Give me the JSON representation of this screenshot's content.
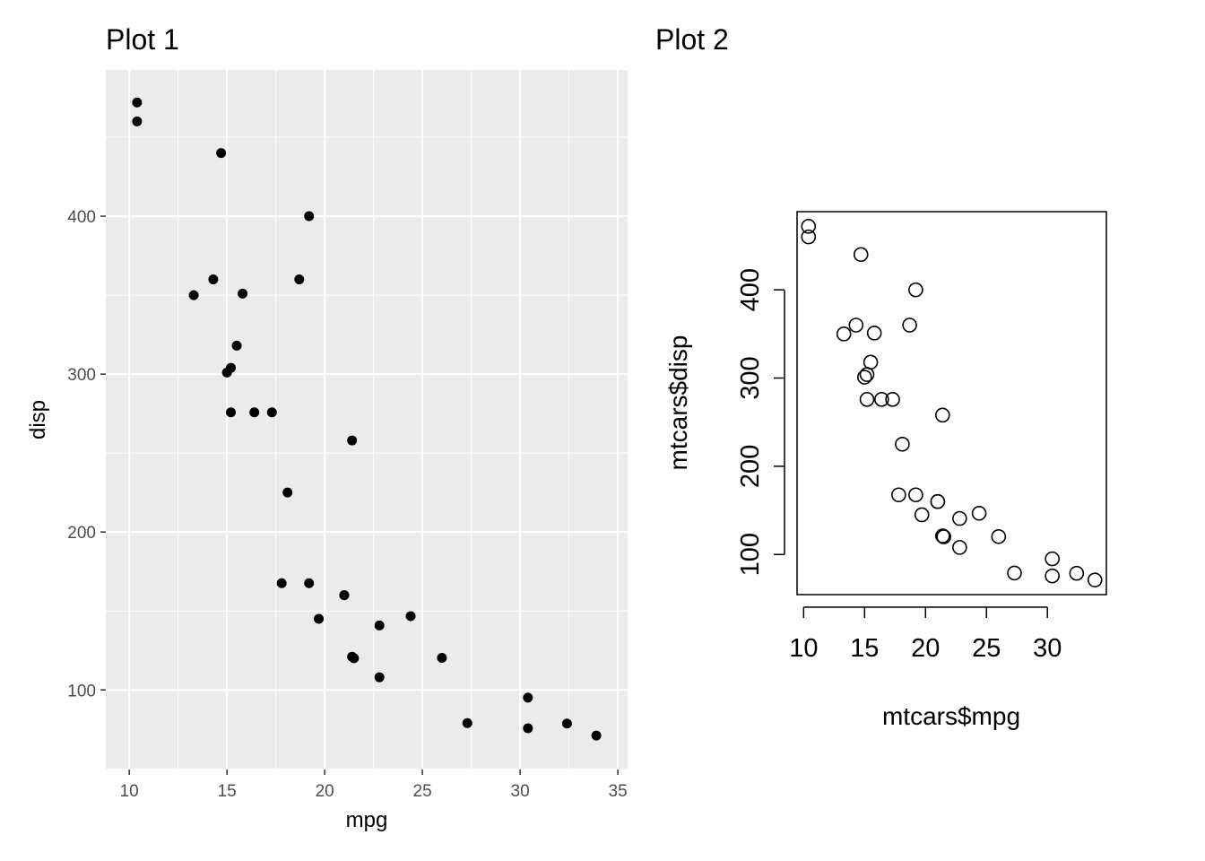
{
  "chart_data": [
    {
      "type": "scatter",
      "title": "Plot 1",
      "xlabel": "mpg",
      "ylabel": "disp",
      "xlim": [
        8.8,
        35.5
      ],
      "ylim": [
        49.6,
        492.6
      ],
      "x_ticks": [
        10,
        15,
        20,
        25,
        30,
        35
      ],
      "y_ticks": [
        100,
        200,
        300,
        400
      ],
      "x_tick_labels": [
        "10",
        "15",
        "20",
        "25",
        "30",
        "35"
      ],
      "y_tick_labels": [
        "100",
        "200",
        "300",
        "400"
      ],
      "grid": true,
      "background": "#ebebeb",
      "point_color": "#000000",
      "x": [
        21,
        21,
        22.8,
        21.4,
        18.7,
        18.1,
        14.3,
        24.4,
        22.8,
        19.2,
        17.8,
        16.4,
        17.3,
        15.2,
        10.4,
        10.4,
        14.7,
        32.4,
        30.4,
        33.9,
        21.5,
        15.5,
        15.2,
        13.3,
        19.2,
        27.3,
        26,
        30.4,
        15.8,
        19.7,
        15,
        21.4
      ],
      "y": [
        160,
        160,
        108,
        258,
        360,
        225,
        360,
        146.7,
        140.8,
        167.6,
        167.6,
        275.8,
        275.8,
        275.8,
        472,
        460,
        440,
        78.7,
        75.7,
        71.1,
        120.1,
        318,
        304,
        350,
        400,
        79,
        120.3,
        95.1,
        351,
        145,
        301,
        121
      ]
    },
    {
      "type": "scatter",
      "title": "Plot 2",
      "xlabel": "mtcars$mpg",
      "ylabel": "mtcars$disp",
      "xlim": [
        9.46,
        34.84
      ],
      "ylim": [
        54.5,
        488.6
      ],
      "x_ticks": [
        10,
        15,
        20,
        25,
        30
      ],
      "y_ticks": [
        100,
        200,
        300,
        400
      ],
      "x_tick_labels": [
        "10",
        "15",
        "20",
        "25",
        "30"
      ],
      "y_tick_labels": [
        "100",
        "200",
        "300",
        "400"
      ],
      "grid": false,
      "background": "#ffffff",
      "point_color": "#000000",
      "x": [
        21,
        21,
        22.8,
        21.4,
        18.7,
        18.1,
        14.3,
        24.4,
        22.8,
        19.2,
        17.8,
        16.4,
        17.3,
        15.2,
        10.4,
        10.4,
        14.7,
        32.4,
        30.4,
        33.9,
        21.5,
        15.5,
        15.2,
        13.3,
        19.2,
        27.3,
        26,
        30.4,
        15.8,
        19.7,
        15,
        21.4
      ],
      "y": [
        160,
        160,
        108,
        258,
        360,
        225,
        360,
        146.7,
        140.8,
        167.6,
        167.6,
        275.8,
        275.8,
        275.8,
        472,
        460,
        440,
        78.7,
        75.7,
        71.1,
        120.1,
        318,
        304,
        350,
        400,
        79,
        120.3,
        95.1,
        351,
        145,
        301,
        121
      ]
    }
  ]
}
